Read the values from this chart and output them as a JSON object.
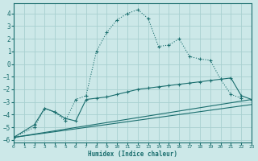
{
  "xlabel": "Humidex (Indice chaleur)",
  "background_color": "#cce8e8",
  "grid_color": "#a8d0d0",
  "line_color": "#1a6e6e",
  "xlim": [
    0,
    23
  ],
  "ylim": [
    -6.2,
    4.8
  ],
  "yticks": [
    -6,
    -5,
    -4,
    -3,
    -2,
    -1,
    0,
    1,
    2,
    3,
    4
  ],
  "xticks": [
    0,
    1,
    2,
    3,
    4,
    5,
    6,
    7,
    8,
    9,
    10,
    11,
    12,
    13,
    14,
    15,
    16,
    17,
    18,
    19,
    20,
    21,
    22,
    23
  ],
  "line1_x": [
    0,
    2,
    3,
    4,
    5,
    6,
    7,
    8,
    9,
    10,
    11,
    12,
    13,
    14,
    15,
    16,
    17,
    18,
    19,
    20,
    21,
    22
  ],
  "line1_y": [
    -5.8,
    -5.0,
    -3.5,
    -3.8,
    -4.5,
    -2.8,
    -2.5,
    1.0,
    2.5,
    3.5,
    4.0,
    4.3,
    3.6,
    1.4,
    1.5,
    2.0,
    0.6,
    0.4,
    0.3,
    -1.2,
    -2.4,
    -2.7
  ],
  "line2_x": [
    0,
    2,
    3,
    4,
    5,
    6,
    7,
    8,
    9,
    10,
    11,
    12,
    13,
    14,
    15,
    16,
    17,
    18,
    19,
    20,
    21,
    22,
    23
  ],
  "line2_y": [
    -5.8,
    -4.8,
    -3.5,
    -3.8,
    -4.3,
    -4.5,
    -2.8,
    -2.7,
    -2.6,
    -2.4,
    -2.2,
    -2.0,
    -1.9,
    -1.8,
    -1.7,
    -1.6,
    -1.5,
    -1.4,
    -1.3,
    -1.2,
    -1.1,
    -2.5,
    -2.8
  ],
  "line3_x": [
    0,
    23
  ],
  "line3_y": [
    -5.8,
    -2.8
  ],
  "line4_x": [
    0,
    23
  ],
  "line4_y": [
    -5.8,
    -3.2
  ]
}
